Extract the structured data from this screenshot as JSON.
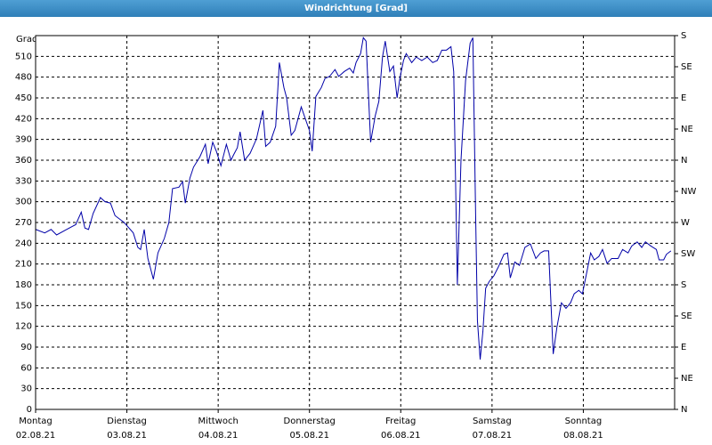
{
  "chart_data": {
    "type": "line",
    "title": "Windrichtung [Grad]",
    "y_label": "Grad",
    "xlim": [
      0,
      7
    ],
    "ylim": [
      0,
      540
    ],
    "y2lim": [
      0,
      540
    ],
    "grid": true,
    "xticks": [
      {
        "value": 0,
        "label": "Montag",
        "date": "02.08.21"
      },
      {
        "value": 1,
        "label": "Dienstag",
        "date": "03.08.21"
      },
      {
        "value": 2,
        "label": "Mittwoch",
        "date": "04.08.21"
      },
      {
        "value": 3,
        "label": "Donnerstag",
        "date": "05.08.21"
      },
      {
        "value": 4,
        "label": "Freitag",
        "date": "06.08.21"
      },
      {
        "value": 5,
        "label": "Samstag",
        "date": "07.08.21"
      },
      {
        "value": 6,
        "label": "Sonntag",
        "date": "08.08.21"
      }
    ],
    "yticks": [
      0,
      30,
      60,
      90,
      120,
      150,
      180,
      210,
      240,
      270,
      300,
      330,
      360,
      390,
      420,
      450,
      480,
      510
    ],
    "y2ticks": [
      {
        "value": 0,
        "label": "N"
      },
      {
        "value": 45,
        "label": "NE"
      },
      {
        "value": 90,
        "label": "E"
      },
      {
        "value": 135,
        "label": "SE"
      },
      {
        "value": 180,
        "label": "S"
      },
      {
        "value": 225,
        "label": "SW"
      },
      {
        "value": 270,
        "label": "W"
      },
      {
        "value": 315,
        "label": "NW"
      },
      {
        "value": 360,
        "label": "N"
      },
      {
        "value": 405,
        "label": "NE"
      },
      {
        "value": 450,
        "label": "E"
      },
      {
        "value": 495,
        "label": "SE"
      },
      {
        "value": 540,
        "label": "S"
      }
    ],
    "series": [
      {
        "color": "#0000a8",
        "x": [
          0,
          0.1,
          0.17,
          0.23,
          0.34,
          0.44,
          0.5,
          0.54,
          0.58,
          0.63,
          0.71,
          0.76,
          0.82,
          0.87,
          0.97,
          1.07,
          1.12,
          1.15,
          1.19,
          1.23,
          1.29,
          1.34,
          1.41,
          1.46,
          1.5,
          1.57,
          1.61,
          1.64,
          1.69,
          1.73,
          1.8,
          1.86,
          1.89,
          1.94,
          1.98,
          2.03,
          2.09,
          2.14,
          2.17,
          2.21,
          2.24,
          2.29,
          2.35,
          2.42,
          2.49,
          2.52,
          2.57,
          2.63,
          2.67,
          2.72,
          2.75,
          2.8,
          2.84,
          2.91,
          2.97,
          3.0,
          3.03,
          3.07,
          3.13,
          3.17,
          3.22,
          3.28,
          3.32,
          3.38,
          3.44,
          3.48,
          3.51,
          3.56,
          3.59,
          3.62,
          3.67,
          3.72,
          3.76,
          3.8,
          3.83,
          3.88,
          3.92,
          3.96,
          3.99,
          4.03,
          4.06,
          4.12,
          4.17,
          4.23,
          4.29,
          4.35,
          4.4,
          4.45,
          4.5,
          4.55,
          4.58,
          4.62,
          4.66,
          4.71,
          4.76,
          4.79,
          4.82,
          4.84,
          4.87,
          4.9,
          4.93,
          4.97,
          5.02,
          5.07,
          5.13,
          5.17,
          5.2,
          5.25,
          5.3,
          5.36,
          5.42,
          5.48,
          5.53,
          5.57,
          5.62,
          5.67,
          5.71,
          5.76,
          5.81,
          5.86,
          5.9,
          5.95,
          5.99,
          6.03,
          6.08,
          6.12,
          6.17,
          6.21,
          6.26,
          6.31,
          6.38,
          6.43,
          6.49,
          6.53,
          6.59,
          6.64,
          6.68,
          6.74,
          6.8,
          6.83,
          6.88,
          6.91,
          6.96
        ],
        "values": [
          260,
          255,
          260,
          252,
          260,
          267,
          285,
          262,
          260,
          283,
          306,
          300,
          298,
          280,
          270,
          255,
          234,
          231,
          260,
          218,
          188,
          226,
          247,
          270,
          319,
          321,
          329,
          298,
          334,
          350,
          365,
          383,
          355,
          386,
          373,
          352,
          383,
          360,
          368,
          378,
          401,
          360,
          370,
          391,
          432,
          380,
          386,
          409,
          501,
          465,
          450,
          396,
          403,
          437,
          414,
          403,
          373,
          452,
          465,
          478,
          481,
          491,
          481,
          488,
          493,
          486,
          501,
          514,
          537,
          532,
          386,
          424,
          445,
          509,
          532,
          488,
          496,
          450,
          478,
          504,
          514,
          501,
          509,
          504,
          509,
          501,
          504,
          519,
          519,
          524,
          488,
          180,
          360,
          475,
          529,
          537,
          283,
          128,
          72,
          113,
          175,
          185,
          193,
          206,
          224,
          226,
          190,
          213,
          208,
          234,
          239,
          218,
          226,
          229,
          229,
          80,
          118,
          154,
          146,
          154,
          167,
          172,
          167,
          193,
          226,
          216,
          221,
          231,
          211,
          218,
          218,
          231,
          226,
          236,
          242,
          234,
          242,
          236,
          231,
          216,
          216,
          224,
          229
        ]
      }
    ]
  }
}
